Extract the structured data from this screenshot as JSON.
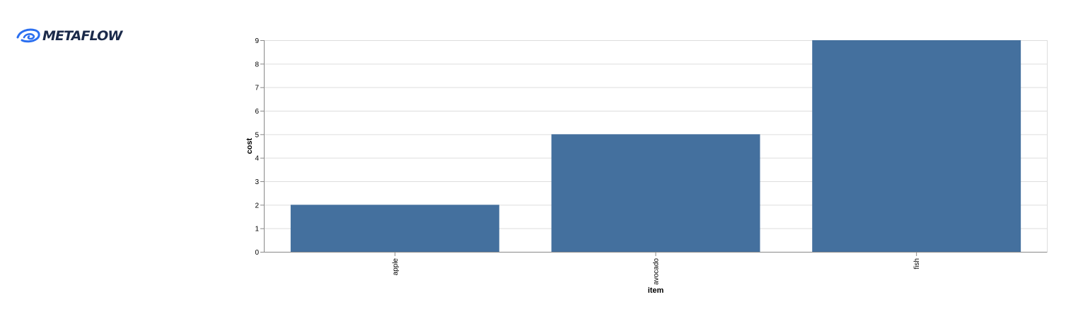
{
  "header": {
    "logo_text": "METAFLOW",
    "logo_icon": "metaflow-swirl-icon"
  },
  "colors": {
    "bar": "#44709e",
    "grid": "#dddddd",
    "axis": "#888888",
    "logo": "#2b6ff0"
  },
  "chart_data": {
    "type": "bar",
    "categories": [
      "apple",
      "avocado",
      "fish"
    ],
    "values": [
      2,
      5,
      9
    ],
    "xlabel": "item",
    "ylabel": "cost",
    "ylim": [
      0,
      9
    ],
    "yticks": [
      0,
      1,
      2,
      3,
      4,
      5,
      6,
      7,
      8,
      9
    ],
    "grid": true
  }
}
